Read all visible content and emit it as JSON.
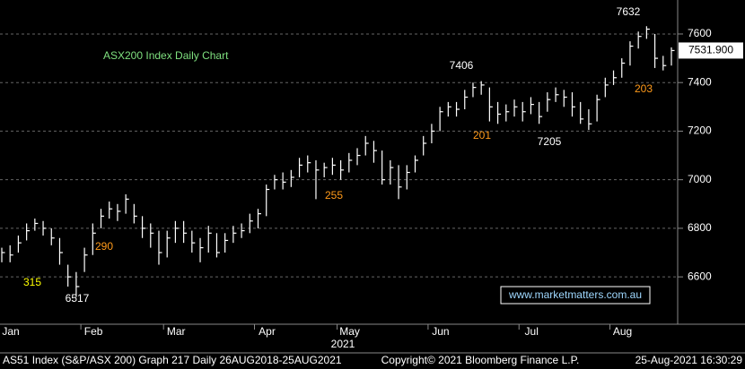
{
  "chart_data": {
    "type": "ohlc",
    "title": "ASX200 Index Daily Chart",
    "x_label": "2021",
    "categories": [
      "Jan",
      null,
      null,
      null,
      null,
      null,
      null,
      null,
      null,
      null,
      "Feb",
      null,
      null,
      null,
      null,
      null,
      null,
      null,
      null,
      null,
      "Mar",
      null,
      null,
      null,
      null,
      null,
      null,
      null,
      null,
      null,
      null,
      "Apr",
      null,
      null,
      null,
      null,
      null,
      null,
      null,
      null,
      null,
      "May",
      null,
      null,
      null,
      null,
      null,
      null,
      null,
      null,
      null,
      null,
      "Jun",
      null,
      null,
      null,
      null,
      null,
      null,
      null,
      null,
      null,
      null,
      "Jul",
      null,
      null,
      null,
      null,
      null,
      null,
      null,
      null,
      null,
      null,
      "Aug",
      null,
      null,
      null,
      null,
      null,
      null,
      null
    ],
    "values": [
      6700,
      6690,
      6740,
      6790,
      6820,
      6800,
      6760,
      6700,
      6600,
      6560,
      6690,
      6780,
      6850,
      6880,
      6870,
      6920,
      6850,
      6800,
      6780,
      6700,
      6760,
      6800,
      6780,
      6740,
      6720,
      6780,
      6700,
      6750,
      6780,
      6790,
      6830,
      6860,
      6960,
      7000,
      6990,
      7010,
      7060,
      7070,
      7040,
      7050,
      7060,
      7040,
      7080,
      7100,
      7150,
      7120,
      7000,
      7050,
      6970,
      7030,
      7080,
      7150,
      7200,
      7280,
      7300,
      7290,
      7340,
      7380,
      7390,
      7300,
      7270,
      7280,
      7300,
      7280,
      7310,
      7260,
      7330,
      7350,
      7340,
      7300,
      7250,
      7230,
      7330,
      7390,
      7420,
      7480,
      7550,
      7590,
      7620,
      7500,
      7470,
      7531.9
    ],
    "high": [
      6720,
      6730,
      6770,
      6820,
      6840,
      6830,
      6800,
      6760,
      6650,
      6620,
      6720,
      6820,
      6880,
      6910,
      6900,
      6940,
      6900,
      6850,
      6820,
      6790,
      6790,
      6830,
      6830,
      6790,
      6760,
      6810,
      6780,
      6780,
      6810,
      6820,
      6860,
      6880,
      6980,
      7020,
      7030,
      7040,
      7090,
      7100,
      7080,
      7070,
      7090,
      7080,
      7110,
      7130,
      7180,
      7160,
      7120,
      7080,
      7060,
      7060,
      7100,
      7180,
      7230,
      7300,
      7320,
      7320,
      7370,
      7400,
      7406,
      7380,
      7320,
      7310,
      7330,
      7320,
      7340,
      7320,
      7360,
      7380,
      7370,
      7360,
      7320,
      7290,
      7350,
      7420,
      7450,
      7500,
      7570,
      7610,
      7632,
      7600,
      7510,
      7545
    ],
    "low": [
      6660,
      6660,
      6700,
      6750,
      6790,
      6770,
      6730,
      6650,
      6560,
      6517,
      6620,
      6690,
      6800,
      6840,
      6830,
      6860,
      6820,
      6760,
      6720,
      6650,
      6680,
      6740,
      6740,
      6700,
      6660,
      6700,
      6680,
      6700,
      6740,
      6760,
      6780,
      6800,
      6850,
      6960,
      6960,
      6970,
      7010,
      7030,
      6920,
      7010,
      7020,
      7000,
      7030,
      7060,
      7100,
      7070,
      6980,
      6980,
      6920,
      6960,
      7030,
      7100,
      7150,
      7200,
      7260,
      7260,
      7290,
      7340,
      7350,
      7240,
      7230,
      7240,
      7260,
      7240,
      7270,
      7230,
      7280,
      7320,
      7300,
      7260,
      7230,
      7205,
      7240,
      7340,
      7390,
      7420,
      7470,
      7540,
      7580,
      7460,
      7450,
      7470
    ],
    "color": "#ffffff",
    "ylim": [
      6405,
      7740
    ],
    "yticks": [
      6600,
      6800,
      7000,
      7200,
      7400,
      7600
    ],
    "grid": true,
    "current_price": {
      "value": 7531.9,
      "label": "7531.900"
    },
    "annotations": [
      {
        "text": "7632",
        "color": "#ffffff"
      },
      {
        "text": "7406",
        "color": "#ffffff"
      },
      {
        "text": "7205",
        "color": "#ffffff"
      },
      {
        "text": "6517",
        "color": "#ffffff"
      },
      {
        "text": "315",
        "color": "#ffff00"
      },
      {
        "text": "290",
        "color": "#ff9a1a"
      },
      {
        "text": "255",
        "color": "#ff9a1a"
      },
      {
        "text": "201",
        "color": "#ff9a1a"
      },
      {
        "text": "203",
        "color": "#ff9a1a"
      }
    ],
    "watermark": "www.marketmatters.com.au"
  },
  "footer": {
    "left": "AS51 Index (S&P/ASX 200) Graph 217  Daily 26AUG2018-25AUG2021",
    "center": "Copyright© 2021 Bloomberg Finance L.P.",
    "right": "25-Aug-2021 16:30:29"
  }
}
